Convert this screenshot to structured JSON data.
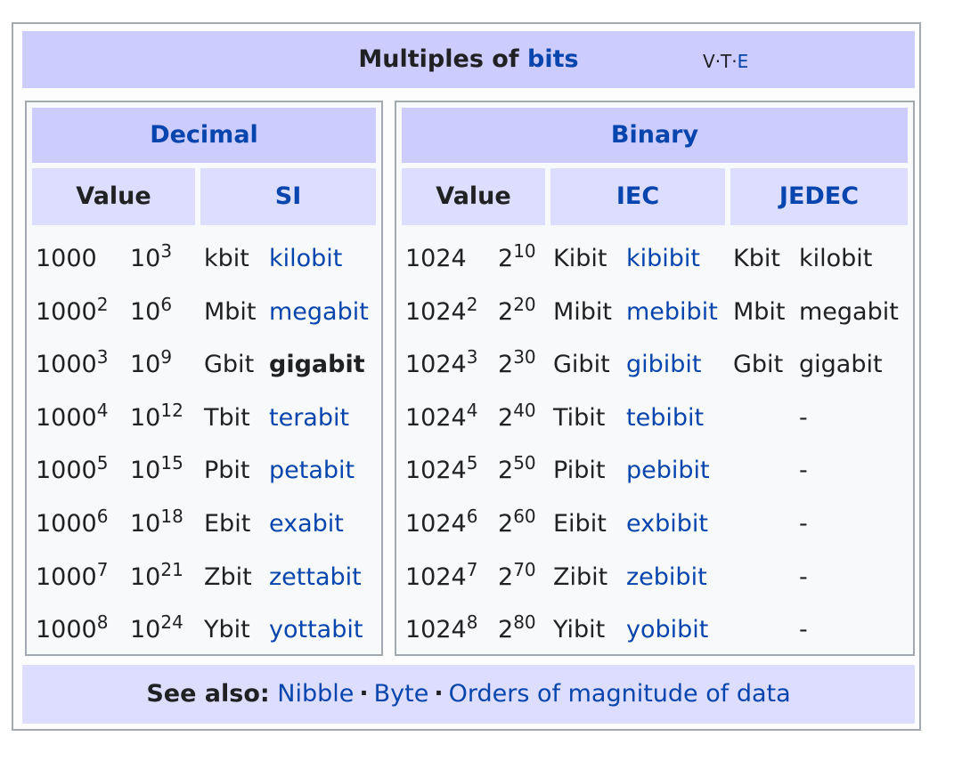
{
  "header": {
    "title_prefix": "Multiples of",
    "title_link": "bits",
    "vte": {
      "v": "v",
      "t": "t",
      "e": "e",
      "sep": "·"
    }
  },
  "decimal": {
    "title": "Decimal",
    "col_value": "Value",
    "col_si": "SI",
    "rows": [
      {
        "base": "1000",
        "exp": "",
        "pow_base": "10",
        "pow_exp": "3",
        "symbol": "kbit",
        "name": "kilobit",
        "link": true
      },
      {
        "base": "1000",
        "exp": "2",
        "pow_base": "10",
        "pow_exp": "6",
        "symbol": "Mbit",
        "name": "megabit",
        "link": true
      },
      {
        "base": "1000",
        "exp": "3",
        "pow_base": "10",
        "pow_exp": "9",
        "symbol": "Gbit",
        "name": "gigabit",
        "link": false
      },
      {
        "base": "1000",
        "exp": "4",
        "pow_base": "10",
        "pow_exp": "12",
        "symbol": "Tbit",
        "name": "terabit",
        "link": true
      },
      {
        "base": "1000",
        "exp": "5",
        "pow_base": "10",
        "pow_exp": "15",
        "symbol": "Pbit",
        "name": "petabit",
        "link": true
      },
      {
        "base": "1000",
        "exp": "6",
        "pow_base": "10",
        "pow_exp": "18",
        "symbol": "Ebit",
        "name": "exabit",
        "link": true
      },
      {
        "base": "1000",
        "exp": "7",
        "pow_base": "10",
        "pow_exp": "21",
        "symbol": "Zbit",
        "name": "zettabit",
        "link": true
      },
      {
        "base": "1000",
        "exp": "8",
        "pow_base": "10",
        "pow_exp": "24",
        "symbol": "Ybit",
        "name": "yottabit",
        "link": true
      }
    ]
  },
  "binary": {
    "title": "Binary",
    "col_value": "Value",
    "col_iec": "IEC",
    "col_jedec": "JEDEC",
    "rows": [
      {
        "base": "1024",
        "exp": "",
        "pow_base": "2",
        "pow_exp": "10",
        "iec_symbol": "Kibit",
        "iec_name": "kibibit",
        "jedec_symbol": "Kbit",
        "jedec_name": "kilobit"
      },
      {
        "base": "1024",
        "exp": "2",
        "pow_base": "2",
        "pow_exp": "20",
        "iec_symbol": "Mibit",
        "iec_name": "mebibit",
        "jedec_symbol": "Mbit",
        "jedec_name": "megabit"
      },
      {
        "base": "1024",
        "exp": "3",
        "pow_base": "2",
        "pow_exp": "30",
        "iec_symbol": "Gibit",
        "iec_name": "gibibit",
        "jedec_symbol": "Gbit",
        "jedec_name": "gigabit"
      },
      {
        "base": "1024",
        "exp": "4",
        "pow_base": "2",
        "pow_exp": "40",
        "iec_symbol": "Tibit",
        "iec_name": "tebibit",
        "jedec_symbol": "",
        "jedec_name": "-"
      },
      {
        "base": "1024",
        "exp": "5",
        "pow_base": "2",
        "pow_exp": "50",
        "iec_symbol": "Pibit",
        "iec_name": "pebibit",
        "jedec_symbol": "",
        "jedec_name": "-"
      },
      {
        "base": "1024",
        "exp": "6",
        "pow_base": "2",
        "pow_exp": "60",
        "iec_symbol": "Eibit",
        "iec_name": "exbibit",
        "jedec_symbol": "",
        "jedec_name": "-"
      },
      {
        "base": "1024",
        "exp": "7",
        "pow_base": "2",
        "pow_exp": "70",
        "iec_symbol": "Zibit",
        "iec_name": "zebibit",
        "jedec_symbol": "",
        "jedec_name": "-"
      },
      {
        "base": "1024",
        "exp": "8",
        "pow_base": "2",
        "pow_exp": "80",
        "iec_symbol": "Yibit",
        "iec_name": "yobibit",
        "jedec_symbol": "",
        "jedec_name": "-"
      }
    ]
  },
  "footer": {
    "label": "See also:",
    "links": [
      "Nibble",
      "Byte",
      "Orders of magnitude of data"
    ],
    "sep": "·"
  },
  "colors": {
    "title_bg": "#ccccff",
    "subheader_bg": "#ddddff",
    "link": "#0645ad",
    "border": "#a2a9b1"
  }
}
